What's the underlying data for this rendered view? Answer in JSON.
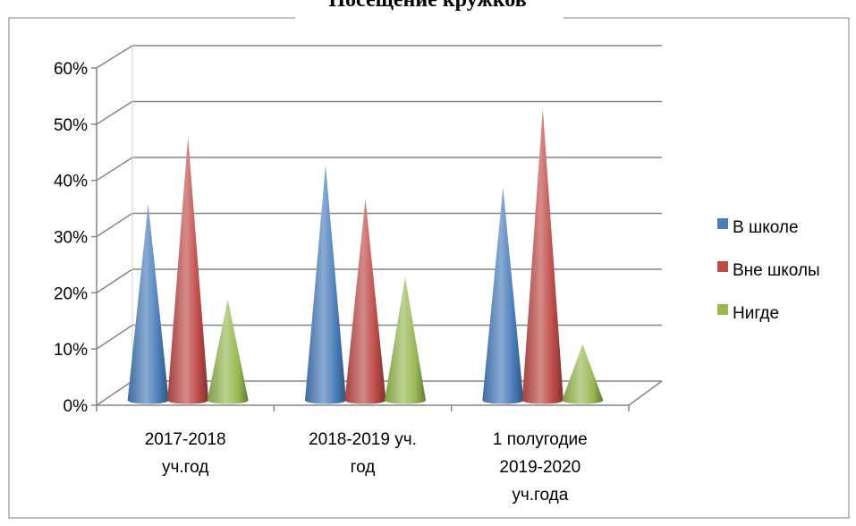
{
  "chart_data": {
    "type": "bar",
    "style": "3d-cone",
    "title": "Посещение кружков",
    "categories": [
      [
        "2017-2018",
        "уч.год"
      ],
      [
        "2018-2019 уч.",
        "год"
      ],
      [
        "1 полугодие",
        "2019-2020",
        "уч.года"
      ]
    ],
    "series": [
      {
        "name": "В школе",
        "color": "#4a7ebb",
        "values": [
          0.35,
          0.42,
          0.38
        ]
      },
      {
        "name": "Вне школы",
        "color": "#be4b48",
        "values": [
          0.47,
          0.36,
          0.52
        ]
      },
      {
        "name": "Нигде",
        "color": "#98b954",
        "values": [
          0.18,
          0.22,
          0.1
        ]
      }
    ],
    "y_ticks": [
      "0%",
      "10%",
      "20%",
      "30%",
      "40%",
      "50%",
      "60%"
    ],
    "ylim": [
      0,
      0.6
    ],
    "grid": true,
    "legend_position": "right"
  }
}
